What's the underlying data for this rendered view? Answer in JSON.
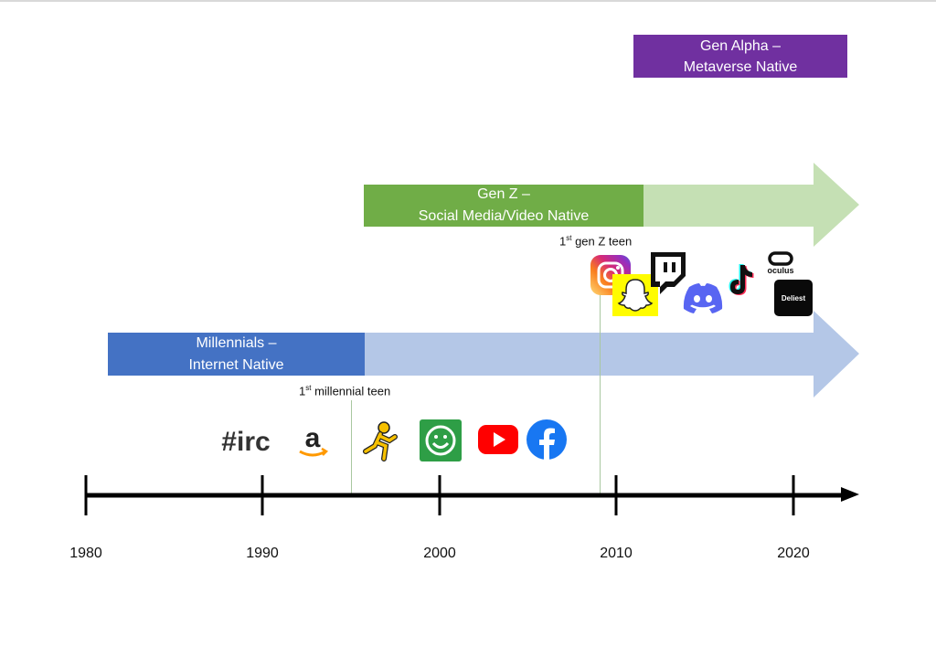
{
  "generations": {
    "gen_alpha": {
      "line1": "Gen Alpha –",
      "line2": "Metaverse Native",
      "color": "#7030a0"
    },
    "gen_z": {
      "line1": "Gen Z –",
      "line2": "Social Media/Video Native",
      "color": "#70ad47",
      "arrow_color": "#c5e0b4"
    },
    "millennials": {
      "line1": "Millennials –",
      "line2": "Internet Native",
      "color": "#4472c4",
      "arrow_color": "#b4c7e7"
    }
  },
  "markers": {
    "millennial_teen": {
      "num": "1",
      "sup": "st",
      "text": " millennial teen"
    },
    "genz_teen": {
      "num": "1",
      "sup": "st",
      "text": " gen Z teen"
    }
  },
  "icons": {
    "irc": {
      "text": "#irc"
    },
    "amazon": {
      "text": "a"
    },
    "oculus": {
      "text": "oculus"
    },
    "deliest": {
      "text": "Deliest"
    }
  },
  "timeline": {
    "ticks": [
      "1980",
      "1990",
      "2000",
      "2010",
      "2020"
    ]
  }
}
